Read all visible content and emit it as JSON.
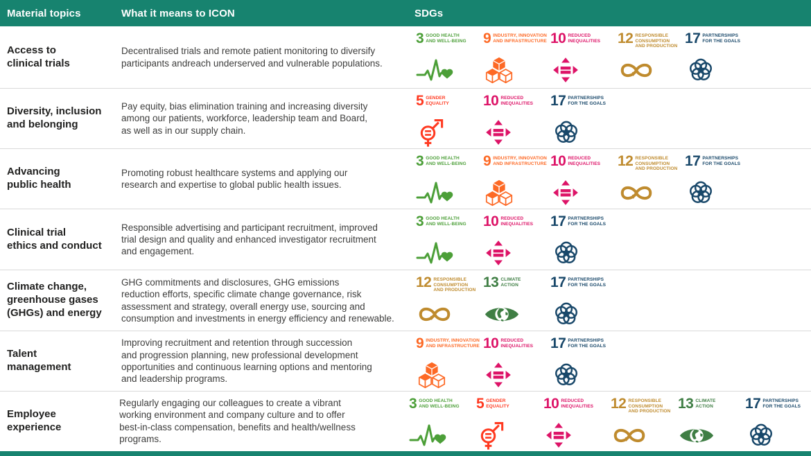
{
  "header": {
    "col_topics": "Material topics",
    "col_meaning": "What it means to ICON",
    "col_sdgs": "SDGs"
  },
  "theme": {
    "header_bg": "#17836F",
    "footer_bar": "#17836F",
    "row_divider": "#d9d9d9",
    "topic_text": "#212120",
    "description_text": "#3d3d3c"
  },
  "sdg_catalog": {
    "3": {
      "number": "3",
      "label": "GOOD HEALTH\nAND WELL-BEING",
      "color": "#4C9F38",
      "icon": "heartbeat-heart-icon"
    },
    "5": {
      "number": "5",
      "label": "GENDER\nEQUALITY",
      "color": "#FF3A21",
      "icon": "gender-symbol-icon"
    },
    "9": {
      "number": "9",
      "label": "INDUSTRY, INNOVATION\nAND INFRASTRUCTURE",
      "color": "#FD6925",
      "icon": "cubes-icon"
    },
    "10": {
      "number": "10",
      "label": "REDUCED\nINEQUALITIES",
      "color": "#DD1367",
      "icon": "equals-arrows-icon"
    },
    "12": {
      "number": "12",
      "label": "RESPONSIBLE\nCONSUMPTION\nAND PRODUCTION",
      "color": "#BF8B2E",
      "icon": "infinity-loop-icon"
    },
    "13": {
      "number": "13",
      "label": "CLIMATE\nACTION",
      "color": "#3F7E44",
      "icon": "climate-eye-icon"
    },
    "17": {
      "number": "17",
      "label": "PARTNERSHIPS\nFOR THE GOALS",
      "color": "#19486A",
      "icon": "partnership-rings-icon"
    }
  },
  "rows": [
    {
      "topic": "Access to\nclinical trials",
      "description": "Decentralised trials and remote patient monitoring to diversify\nparticipants andreach underserved and vulnerable populations.",
      "sdgs": [
        "3",
        "9",
        "10",
        "12",
        "17"
      ]
    },
    {
      "topic": "Diversity, inclusion\nand belonging",
      "description": "Pay equity, bias elimination training and increasing diversity\namong our patients, workforce, leadership team and Board,\nas well as in our supply chain.",
      "sdgs": [
        "5",
        "10",
        "17"
      ]
    },
    {
      "topic": "Advancing\npublic health",
      "description": "Promoting robust healthcare systems and applying our\nresearch and expertise to global public health issues.",
      "sdgs": [
        "3",
        "9",
        "10",
        "12",
        "17"
      ]
    },
    {
      "topic": "Clinical trial\nethics and conduct",
      "description": "Responsible advertising and participant recruitment, improved\ntrial design and quality and enhanced investigator recruitment\nand engagement.",
      "sdgs": [
        "3",
        "10",
        "17"
      ]
    },
    {
      "topic": "Climate change,\ngreenhouse gases\n(GHGs) and energy",
      "description": "GHG commitments and disclosures, GHG emissions\nreduction efforts, specific climate change governance, risk\nassessment and strategy, overall energy use, sourcing and\nconsumption and investments in energy efficiency and renewable.",
      "sdgs": [
        "12",
        "13",
        "17"
      ]
    },
    {
      "topic": "Talent\nmanagement",
      "description": "Improving recruitment and retention through succession\nand progression planning, new professional development\nopportunities and continuous learning options and mentoring\nand leadership programs.",
      "sdgs": [
        "9",
        "10",
        "17"
      ]
    },
    {
      "topic": "Employee\nexperience",
      "description": "Regularly engaging our colleagues to create a vibrant\nworking environment and company culture and to offer\nbest-in-class compensation, benefits and health/wellness\nprograms.",
      "sdgs": [
        "3",
        "5",
        "10",
        "12",
        "13",
        "17"
      ]
    }
  ]
}
